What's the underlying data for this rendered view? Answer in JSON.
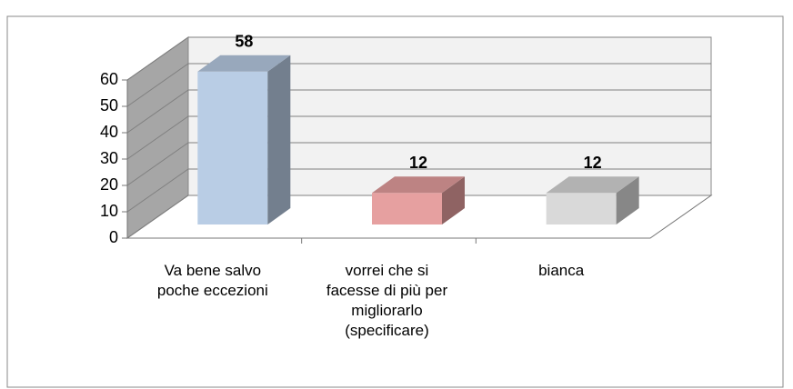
{
  "chart_data": {
    "type": "bar3d",
    "categories": [
      "Va bene salvo poche eccezioni",
      "vorrei che si facesse di più per migliorarlo (specificare)",
      "bianca"
    ],
    "values": [
      58,
      12,
      12
    ],
    "colors": [
      "#b9cde5",
      "#e6a0a0",
      "#d9d9d9"
    ],
    "ylim": [
      0,
      60
    ],
    "yticks": [
      0,
      10,
      20,
      30,
      40,
      50,
      60
    ],
    "grid": true
  }
}
